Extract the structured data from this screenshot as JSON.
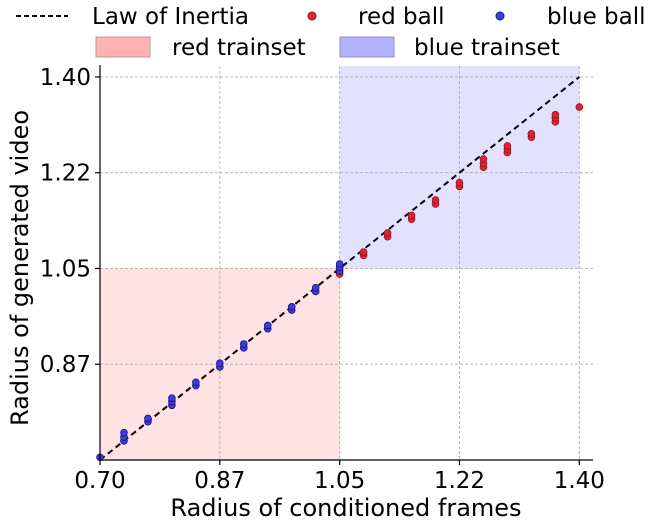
{
  "chart_data": {
    "type": "scatter",
    "title": "",
    "xlabel": "Radius of conditioned frames",
    "ylabel": "Radius of generated video",
    "xlim": [
      0.7,
      1.42
    ],
    "ylim": [
      0.7,
      1.42
    ],
    "xticks": [
      "0.70",
      "0.87",
      "1.05",
      "1.22",
      "1.40"
    ],
    "yticks": [
      "0.87",
      "1.05",
      "1.22",
      "1.40"
    ],
    "xtick_values": [
      0.7,
      0.875,
      1.05,
      1.225,
      1.4
    ],
    "ytick_values": [
      0.875,
      1.05,
      1.225,
      1.4
    ],
    "grid": true,
    "legend_position": "top (above plot)",
    "reference_line": {
      "name": "Law of Inertia",
      "style": "dashed",
      "color": "#000000",
      "x": [
        0.7,
        1.4
      ],
      "y": [
        0.7,
        1.4
      ]
    },
    "regions": [
      {
        "name": "red trainset",
        "x": [
          0.7,
          1.05
        ],
        "y": [
          0.7,
          1.05
        ],
        "color": "#ffb3b3"
      },
      {
        "name": "blue trainset",
        "x": [
          1.05,
          1.4
        ],
        "y": [
          1.05,
          1.42
        ],
        "color": "#b3b3ff"
      }
    ],
    "series": [
      {
        "name": "red ball",
        "color": "#e8202a",
        "edge": "#a01020",
        "points": [
          [
            1.05,
            1.04
          ],
          [
            1.05,
            1.047
          ],
          [
            1.05,
            1.053
          ],
          [
            1.085,
            1.074
          ],
          [
            1.085,
            1.08
          ],
          [
            1.12,
            1.108
          ],
          [
            1.12,
            1.115
          ],
          [
            1.155,
            1.14
          ],
          [
            1.155,
            1.147
          ],
          [
            1.19,
            1.168
          ],
          [
            1.19,
            1.175
          ],
          [
            1.225,
            1.2
          ],
          [
            1.225,
            1.207
          ],
          [
            1.26,
            1.235
          ],
          [
            1.26,
            1.242
          ],
          [
            1.26,
            1.25
          ],
          [
            1.295,
            1.262
          ],
          [
            1.295,
            1.268
          ],
          [
            1.295,
            1.274
          ],
          [
            1.33,
            1.29
          ],
          [
            1.33,
            1.296
          ],
          [
            1.365,
            1.318
          ],
          [
            1.365,
            1.325
          ],
          [
            1.365,
            1.331
          ],
          [
            1.4,
            1.345
          ]
        ]
      },
      {
        "name": "blue ball",
        "color": "#3a3ae0",
        "edge": "#151585",
        "points": [
          [
            0.7,
            0.705
          ],
          [
            0.735,
            0.735
          ],
          [
            0.735,
            0.742
          ],
          [
            0.735,
            0.75
          ],
          [
            0.77,
            0.77
          ],
          [
            0.77,
            0.776
          ],
          [
            0.805,
            0.8
          ],
          [
            0.805,
            0.807
          ],
          [
            0.805,
            0.813
          ],
          [
            0.84,
            0.836
          ],
          [
            0.84,
            0.842
          ],
          [
            0.875,
            0.87
          ],
          [
            0.875,
            0.877
          ],
          [
            0.91,
            0.905
          ],
          [
            0.91,
            0.912
          ],
          [
            0.945,
            0.94
          ],
          [
            0.945,
            0.946
          ],
          [
            0.98,
            0.974
          ],
          [
            0.98,
            0.98
          ],
          [
            1.015,
            1.008
          ],
          [
            1.015,
            1.015
          ],
          [
            1.05,
            1.045
          ],
          [
            1.05,
            1.052
          ],
          [
            1.05,
            1.058
          ]
        ]
      }
    ]
  }
}
